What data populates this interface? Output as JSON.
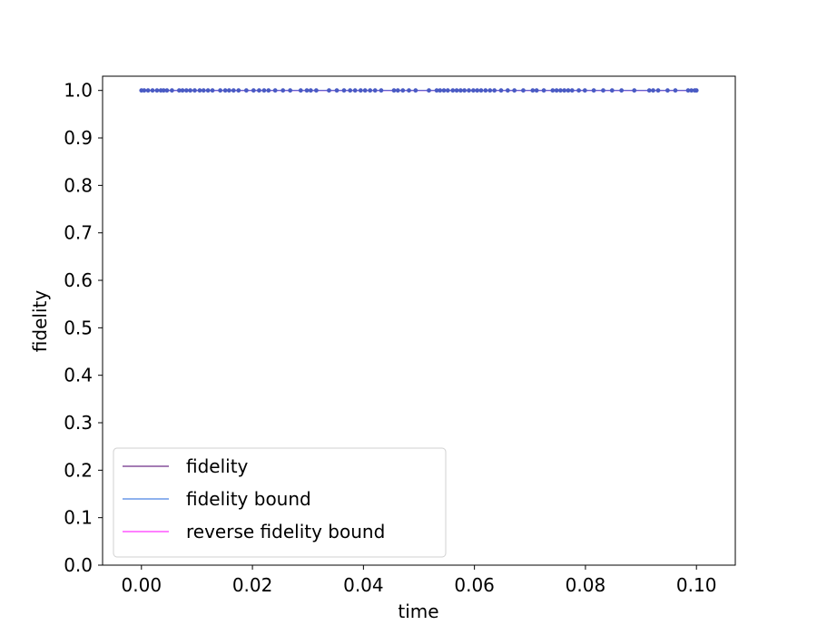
{
  "chart_data": {
    "type": "line",
    "title": "",
    "xlabel": "time",
    "ylabel": "fidelity",
    "xlim": [
      -0.007,
      0.107
    ],
    "ylim": [
      0.0,
      1.03
    ],
    "x_ticks": [
      0.0,
      0.02,
      0.04,
      0.06,
      0.08,
      0.1
    ],
    "x_tick_labels": [
      "0.00",
      "0.02",
      "0.04",
      "0.06",
      "0.08",
      "0.10"
    ],
    "y_ticks": [
      0.0,
      0.1,
      0.2,
      0.3,
      0.4,
      0.5,
      0.6,
      0.7,
      0.8,
      0.9,
      1.0
    ],
    "y_tick_labels": [
      "0.0",
      "0.1",
      "0.2",
      "0.3",
      "0.4",
      "0.5",
      "0.6",
      "0.7",
      "0.8",
      "0.9",
      "1.0"
    ],
    "grid": false,
    "legend_position": "lower-left",
    "series": [
      {
        "name": "fidelity",
        "color": "#a47cb4",
        "marker": "none",
        "x_range": [
          0.0,
          0.1
        ],
        "value": 1.0
      },
      {
        "name": "fidelity bound",
        "color": "#8fb2ee",
        "marker": "none",
        "x_range": [
          0.0,
          0.1
        ],
        "value": 1.0
      },
      {
        "name": "reverse fidelity bound",
        "color": "#ff80ff",
        "marker": "none",
        "x_range": [
          0.0,
          0.1
        ],
        "value": 1.0
      },
      {
        "name": "",
        "color": "#4a5bc4",
        "marker": "circle",
        "value": 1.0,
        "x": [
          0.0,
          0.0005,
          0.0012,
          0.002,
          0.0028,
          0.0035,
          0.004,
          0.0046,
          0.0055,
          0.0068,
          0.0074,
          0.0081,
          0.0088,
          0.0096,
          0.0105,
          0.0112,
          0.012,
          0.0128,
          0.0142,
          0.0151,
          0.0158,
          0.0166,
          0.0175,
          0.0189,
          0.0202,
          0.0212,
          0.0221,
          0.0229,
          0.0241,
          0.0255,
          0.0268,
          0.0287,
          0.0298,
          0.0305,
          0.0315,
          0.0338,
          0.0352,
          0.0365,
          0.0376,
          0.0385,
          0.0395,
          0.0403,
          0.0412,
          0.0421,
          0.0432,
          0.0455,
          0.0462,
          0.0471,
          0.0482,
          0.0494,
          0.0518,
          0.0532,
          0.0538,
          0.0545,
          0.0552,
          0.0561,
          0.0568,
          0.0575,
          0.0582,
          0.059,
          0.0598,
          0.0605,
          0.0612,
          0.062,
          0.0628,
          0.0636,
          0.0648,
          0.066,
          0.0672,
          0.0688,
          0.0705,
          0.0712,
          0.0725,
          0.0741,
          0.0748,
          0.0755,
          0.0762,
          0.0769,
          0.0776,
          0.0788,
          0.0799,
          0.0815,
          0.0832,
          0.0848,
          0.0865,
          0.0888,
          0.0915,
          0.0922,
          0.0931,
          0.0948,
          0.0962,
          0.0985,
          0.0991,
          0.0997,
          0.1
        ]
      }
    ]
  }
}
